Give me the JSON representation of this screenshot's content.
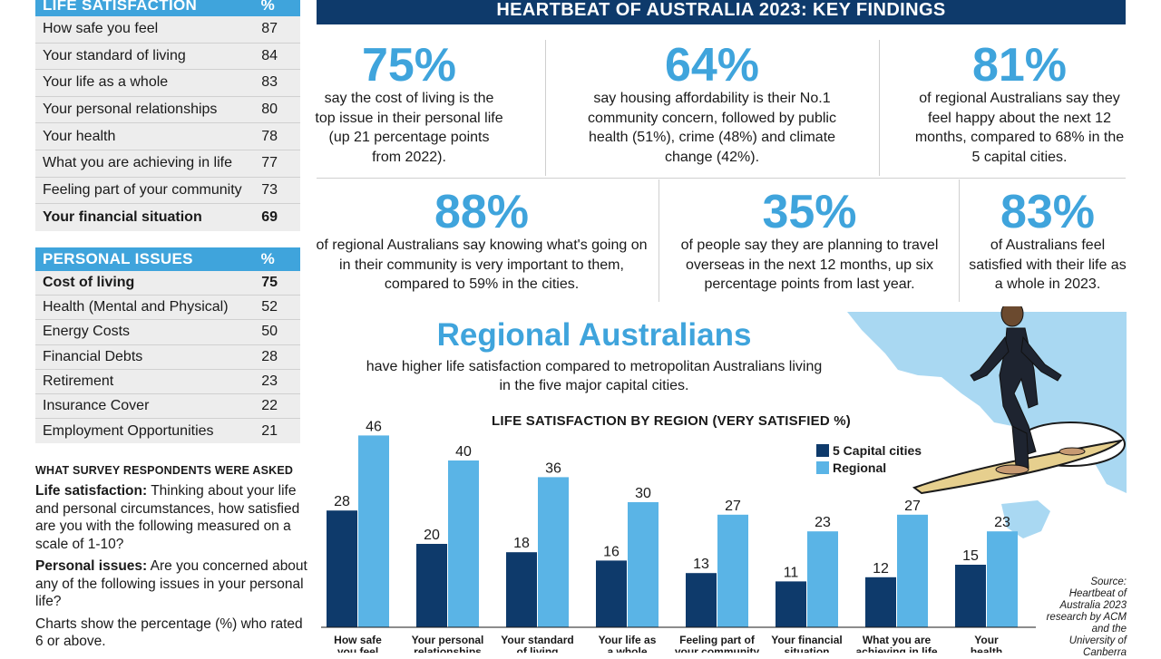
{
  "life_table": {
    "header": "LIFE SATISFACTION",
    "header_unit": "%",
    "rows": [
      {
        "label": "How safe you feel",
        "value": "87"
      },
      {
        "label": "Your standard of living",
        "value": "84"
      },
      {
        "label": "Your life as a whole",
        "value": "83"
      },
      {
        "label": "Your personal relationships",
        "value": "80"
      },
      {
        "label": "Your health",
        "value": "78"
      },
      {
        "label": "What you are achieving in life",
        "value": "77"
      },
      {
        "label": "Feeling part of your community",
        "value": "73"
      },
      {
        "label": "Your financial situation",
        "value": "69"
      }
    ]
  },
  "issues_table": {
    "header": "PERSONAL ISSUES",
    "header_unit": "%",
    "rows": [
      {
        "label": "Cost of living",
        "value": "75"
      },
      {
        "label": "Health (Mental and Physical)",
        "value": "52"
      },
      {
        "label": "Energy Costs",
        "value": "50"
      },
      {
        "label": "Financial Debts",
        "value": "28"
      },
      {
        "label": "Retirement",
        "value": "23"
      },
      {
        "label": "Insurance Cover",
        "value": "22"
      },
      {
        "label": "Employment Opportunities",
        "value": "21"
      }
    ]
  },
  "notes": {
    "heading": "WHAT SURVEY RESPONDENTS WERE ASKED",
    "life_label": "Life satisfaction:",
    "life_text": " Thinking about your life and personal circumstances, how satisfied are you with the following measured on a scale of 1-10?",
    "issues_label": "Personal issues:",
    "issues_text": " Are you concerned about any of the following issues in your personal life?",
    "footer": "Charts show the percentage (%) who rated 6 or above."
  },
  "key_findings": {
    "title": "HEARTBEAT OF AUSTRALIA 2023: KEY FINDINGS",
    "items": [
      {
        "big": "75%",
        "text": "say the cost of living is the top issue in their personal life (up 21 percentage points from 2022)."
      },
      {
        "big": "64%",
        "text": "say housing affordability is their No.1 community concern, followed by public health (51%), crime (48%) and climate change (42%)."
      },
      {
        "big": "81%",
        "text": "of regional Australians say they feel happy about the next 12 months, compared to 68% in the 5 capital cities."
      },
      {
        "big": "88%",
        "text": "of regional Australians say knowing what's going on in their community is very important to them, compared to 59% in the cities."
      },
      {
        "big": "35%",
        "text": "of people say they are planning to travel overseas in the next 12 months, up six percentage points from last year."
      },
      {
        "big": "83%",
        "text": "of Australians feel satisfied with their life as a whole in 2023."
      }
    ]
  },
  "regional": {
    "title": "Regional Australians",
    "subtitle": "have higher life satisfaction compared to metropolitan Australians living in the five major capital cities."
  },
  "source": "Source: Heartbeat of Australia 2023 research by ACM and the University of Canberra",
  "colors": {
    "accent": "#3fa4dc",
    "navy": "#0e3a6b",
    "capital": "#0e3a6b",
    "regional": "#5ab4e6",
    "map": "#a9d8f2"
  },
  "chart_data": {
    "type": "bar",
    "title": "LIFE SATISFACTION BY REGION (VERY SATISFIED %)",
    "categories": [
      "How safe you feel",
      "Your personal relationships",
      "Your standard of living",
      "Your life as a whole",
      "Feeling part of your community",
      "Your financial situation",
      "What you are achieving in life",
      "Your health"
    ],
    "series": [
      {
        "name": "5 Capital cities",
        "values": [
          28,
          20,
          18,
          16,
          13,
          11,
          12,
          15
        ]
      },
      {
        "name": "Regional",
        "values": [
          46,
          40,
          36,
          30,
          27,
          23,
          27,
          23
        ]
      }
    ],
    "ylim": [
      0,
      50
    ],
    "legend": "top-right",
    "grid": false
  }
}
